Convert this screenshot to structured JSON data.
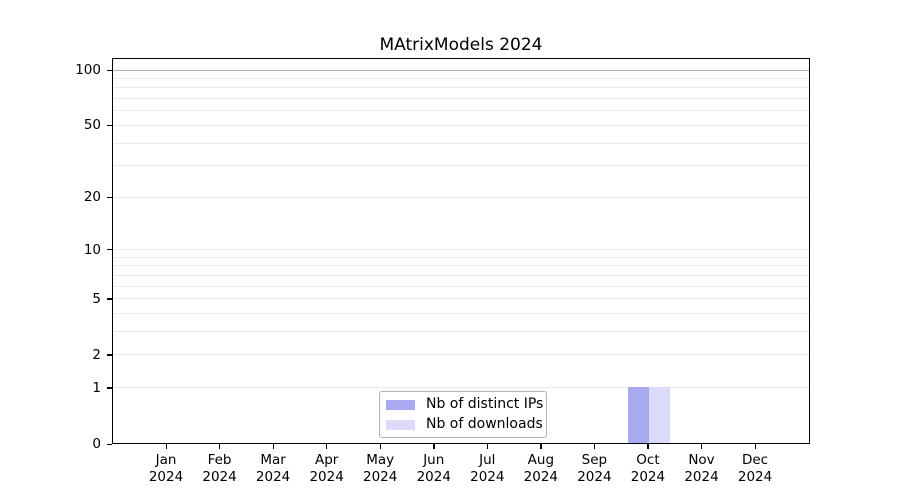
{
  "chart_data": {
    "type": "bar",
    "title": "MAtrixModels 2024",
    "x_year_label": "2024",
    "categories": [
      "Jan",
      "Feb",
      "Mar",
      "Apr",
      "May",
      "Jun",
      "Jul",
      "Aug",
      "Sep",
      "Oct",
      "Nov",
      "Dec"
    ],
    "series": [
      {
        "name": "Nb of distinct IPs",
        "color": "#a9a9f2",
        "values": [
          0,
          0,
          0,
          0,
          0,
          0,
          0,
          0,
          0,
          1,
          0,
          0
        ]
      },
      {
        "name": "Nb of downloads",
        "color": "#dcdcfa",
        "values": [
          0,
          0,
          0,
          0,
          0,
          0,
          0,
          0,
          0,
          1,
          0,
          0
        ]
      }
    ],
    "yscale": "log1p",
    "ylim": [
      0,
      116
    ],
    "y_ticks": [
      0,
      1,
      2,
      5,
      10,
      20,
      50,
      100
    ],
    "gridline_values": [
      1,
      2,
      3,
      4,
      5,
      6,
      7,
      8,
      9,
      10,
      20,
      30,
      40,
      50,
      60,
      70,
      80,
      90,
      100
    ],
    "grid": true,
    "grid_color": "#eaeaea",
    "grid_color_top": "#b3b3b3",
    "legend_position": "lower center"
  }
}
